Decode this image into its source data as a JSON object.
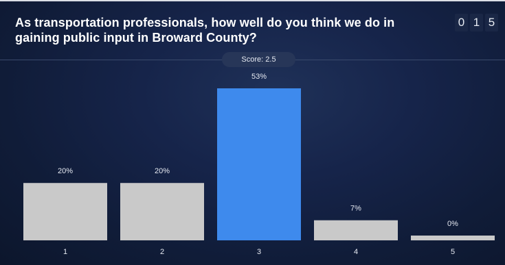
{
  "question": {
    "text": "As transportation professionals, how well do you think we do in gaining public input in Broward County?"
  },
  "response_count": [
    "0",
    "1",
    "5"
  ],
  "score": {
    "label": "Score: 2.5"
  },
  "colors": {
    "bar_default": "#c9c9c9",
    "bar_highlight": "#3e8aed",
    "label_text": "#e6eaf2",
    "background": "#142244"
  },
  "chart_data": {
    "type": "bar",
    "categories": [
      "1",
      "2",
      "3",
      "4",
      "5"
    ],
    "values": [
      20,
      20,
      53,
      7,
      0
    ],
    "value_labels": [
      "20%",
      "20%",
      "53%",
      "7%",
      "0%"
    ],
    "highlight_index": 2,
    "ylim": [
      0,
      53
    ],
    "grid": false,
    "legend": "none"
  }
}
